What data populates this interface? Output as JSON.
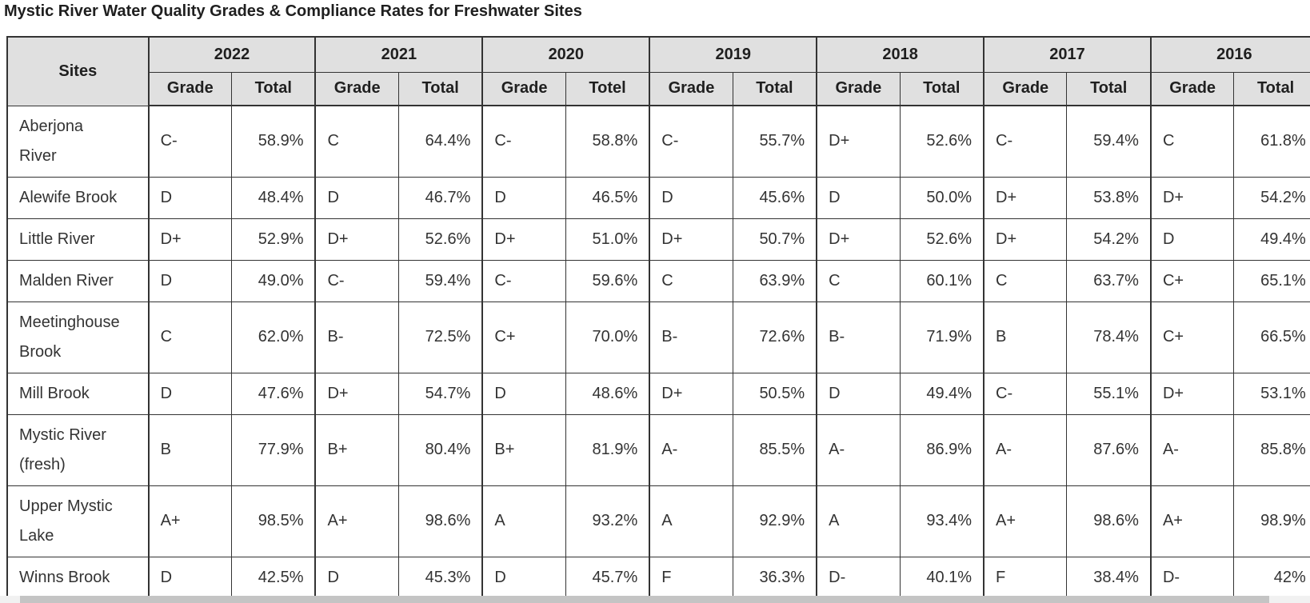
{
  "title": "Mystic River Water Quality Grades & Compliance Rates for Freshwater Sites",
  "colors": {
    "header-bg": "#e0e0e0",
    "border": "#333333",
    "text": "#333333",
    "track": "#f1f1f1",
    "thumb": "#c4c4c4"
  },
  "table": {
    "sites_header": "Sites",
    "years": [
      "2022",
      "2021",
      "2020",
      "2019",
      "2018",
      "2017",
      "2016"
    ],
    "subheaders": [
      [
        "Grade",
        "Total"
      ],
      [
        "Grade",
        "Total"
      ],
      [
        "Grade",
        "Totel"
      ],
      [
        "Grade",
        "Total"
      ],
      [
        "Grade",
        "Total"
      ],
      [
        "Grade",
        "Total"
      ],
      [
        "Grade",
        "Total"
      ]
    ],
    "rows": [
      {
        "site": "Aberjona River",
        "values": [
          [
            "C-",
            "58.9%"
          ],
          [
            "C",
            "64.4%"
          ],
          [
            "C-",
            "58.8%"
          ],
          [
            "C-",
            "55.7%"
          ],
          [
            "D+",
            "52.6%"
          ],
          [
            "C-",
            "59.4%"
          ],
          [
            "C",
            "61.8%"
          ]
        ]
      },
      {
        "site": "Alewife Brook",
        "values": [
          [
            "D",
            "48.4%"
          ],
          [
            "D",
            "46.7%"
          ],
          [
            "D",
            "46.5%"
          ],
          [
            "D",
            "45.6%"
          ],
          [
            "D",
            "50.0%"
          ],
          [
            "D+",
            "53.8%"
          ],
          [
            "D+",
            "54.2%"
          ]
        ]
      },
      {
        "site": "Little River",
        "values": [
          [
            "D+",
            "52.9%"
          ],
          [
            "D+",
            "52.6%"
          ],
          [
            "D+",
            "51.0%"
          ],
          [
            "D+",
            "50.7%"
          ],
          [
            "D+",
            "52.6%"
          ],
          [
            "D+",
            "54.2%"
          ],
          [
            "D",
            "49.4%"
          ]
        ]
      },
      {
        "site": "Malden River",
        "values": [
          [
            "D",
            "49.0%"
          ],
          [
            "C-",
            "59.4%"
          ],
          [
            "C-",
            "59.6%"
          ],
          [
            "C",
            "63.9%"
          ],
          [
            "C",
            "60.1%"
          ],
          [
            "C",
            "63.7%"
          ],
          [
            "C+",
            "65.1%"
          ]
        ]
      },
      {
        "site": "Meetinghouse Brook",
        "values": [
          [
            "C",
            "62.0%"
          ],
          [
            "B-",
            "72.5%"
          ],
          [
            "C+",
            "70.0%"
          ],
          [
            "B-",
            "72.6%"
          ],
          [
            "B-",
            "71.9%"
          ],
          [
            "B",
            "78.4%"
          ],
          [
            "C+",
            "66.5%"
          ]
        ]
      },
      {
        "site": "Mill Brook",
        "values": [
          [
            "D",
            "47.6%"
          ],
          [
            "D+",
            "54.7%"
          ],
          [
            "D",
            "48.6%"
          ],
          [
            "D+",
            "50.5%"
          ],
          [
            "D",
            "49.4%"
          ],
          [
            "C-",
            "55.1%"
          ],
          [
            "D+",
            "53.1%"
          ]
        ]
      },
      {
        "site": "Mystic River (fresh)",
        "values": [
          [
            "B",
            "77.9%"
          ],
          [
            "B+",
            "80.4%"
          ],
          [
            "B+",
            "81.9%"
          ],
          [
            "A-",
            "85.5%"
          ],
          [
            "A-",
            "86.9%"
          ],
          [
            "A-",
            "87.6%"
          ],
          [
            "A-",
            "85.8%"
          ]
        ]
      },
      {
        "site": "Upper Mystic Lake",
        "values": [
          [
            "A+",
            "98.5%"
          ],
          [
            "A+",
            "98.6%"
          ],
          [
            "A",
            "93.2%"
          ],
          [
            "A",
            "92.9%"
          ],
          [
            "A",
            "93.4%"
          ],
          [
            "A+",
            "98.6%"
          ],
          [
            "A+",
            "98.9%"
          ]
        ]
      },
      {
        "site": "Winns Brook",
        "values": [
          [
            "D",
            "42.5%"
          ],
          [
            "D",
            "45.3%"
          ],
          [
            "D",
            "45.7%"
          ],
          [
            "F",
            "36.3%"
          ],
          [
            "D-",
            "40.1%"
          ],
          [
            "F",
            "38.4%"
          ],
          [
            "D-",
            "42%"
          ]
        ]
      }
    ]
  },
  "chart_data": {
    "type": "table",
    "title": "Mystic River Water Quality Grades & Compliance Rates for Freshwater Sites",
    "categories": [
      "2022",
      "2021",
      "2020",
      "2019",
      "2018",
      "2017",
      "2016"
    ],
    "series": [
      {
        "name": "Aberjona River",
        "grades": [
          "C-",
          "C",
          "C-",
          "C-",
          "D+",
          "C-",
          "C"
        ],
        "values": [
          58.9,
          64.4,
          58.8,
          55.7,
          52.6,
          59.4,
          61.8
        ]
      },
      {
        "name": "Alewife Brook",
        "grades": [
          "D",
          "D",
          "D",
          "D",
          "D",
          "D+",
          "D+"
        ],
        "values": [
          48.4,
          46.7,
          46.5,
          45.6,
          50.0,
          53.8,
          54.2
        ]
      },
      {
        "name": "Little River",
        "grades": [
          "D+",
          "D+",
          "D+",
          "D+",
          "D+",
          "D+",
          "D"
        ],
        "values": [
          52.9,
          52.6,
          51.0,
          50.7,
          52.6,
          54.2,
          49.4
        ]
      },
      {
        "name": "Malden River",
        "grades": [
          "D",
          "C-",
          "C-",
          "C",
          "C",
          "C",
          "C+"
        ],
        "values": [
          49.0,
          59.4,
          59.6,
          63.9,
          60.1,
          63.7,
          65.1
        ]
      },
      {
        "name": "Meetinghouse Brook",
        "grades": [
          "C",
          "B-",
          "C+",
          "B-",
          "B-",
          "B",
          "C+"
        ],
        "values": [
          62.0,
          72.5,
          70.0,
          72.6,
          71.9,
          78.4,
          66.5
        ]
      },
      {
        "name": "Mill Brook",
        "grades": [
          "D",
          "D+",
          "D",
          "D+",
          "D",
          "C-",
          "D+"
        ],
        "values": [
          47.6,
          54.7,
          48.6,
          50.5,
          49.4,
          55.1,
          53.1
        ]
      },
      {
        "name": "Mystic River (fresh)",
        "grades": [
          "B",
          "B+",
          "B+",
          "A-",
          "A-",
          "A-",
          "A-"
        ],
        "values": [
          77.9,
          80.4,
          81.9,
          85.5,
          86.9,
          87.6,
          85.8
        ]
      },
      {
        "name": "Upper Mystic Lake",
        "grades": [
          "A+",
          "A+",
          "A",
          "A",
          "A",
          "A+",
          "A+"
        ],
        "values": [
          98.5,
          98.6,
          93.2,
          92.9,
          93.4,
          98.6,
          98.9
        ]
      },
      {
        "name": "Winns Brook",
        "grades": [
          "D",
          "D",
          "D",
          "F",
          "D-",
          "F",
          "D-"
        ],
        "values": [
          42.5,
          45.3,
          45.7,
          36.3,
          40.1,
          38.4,
          42
        ]
      }
    ]
  }
}
